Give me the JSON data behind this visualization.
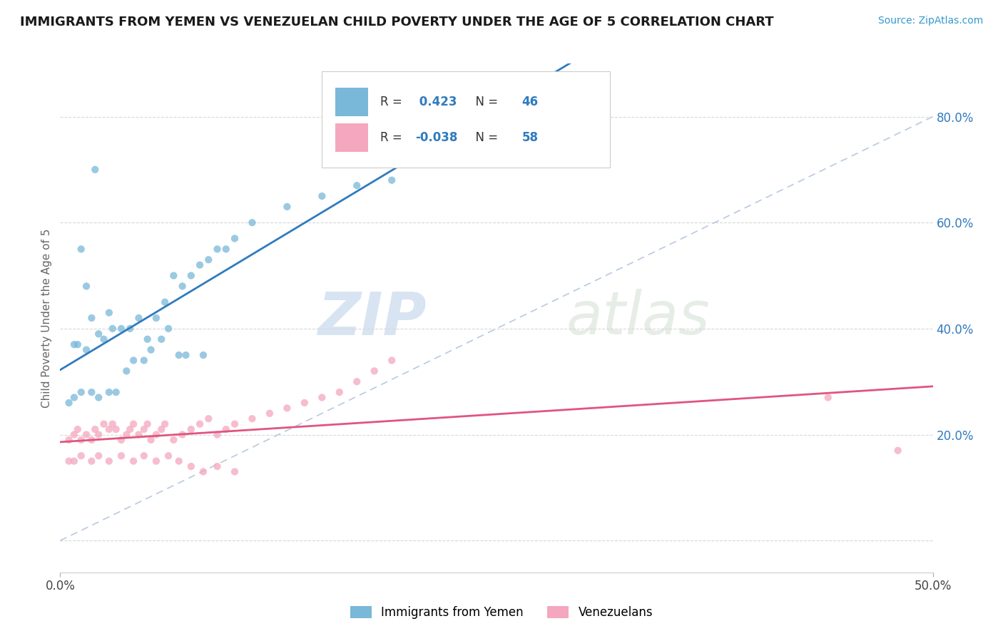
{
  "title": "IMMIGRANTS FROM YEMEN VS VENEZUELAN CHILD POVERTY UNDER THE AGE OF 5 CORRELATION CHART",
  "source": "Source: ZipAtlas.com",
  "ylabel": "Child Poverty Under the Age of 5",
  "xlim": [
    0.0,
    0.5
  ],
  "ylim": [
    -0.06,
    0.9
  ],
  "xticks": [
    0.0,
    0.5
  ],
  "xticklabels": [
    "0.0%",
    "50.0%"
  ],
  "yticks_right": [
    0.2,
    0.4,
    0.6,
    0.8
  ],
  "yticklabels_right": [
    "20.0%",
    "40.0%",
    "60.0%",
    "80.0%"
  ],
  "blue_color": "#7ab8d9",
  "pink_color": "#f4a7be",
  "blue_line_color": "#2f7bbf",
  "pink_line_color": "#e05580",
  "R_blue": 0.423,
  "N_blue": 46,
  "R_pink": -0.038,
  "N_pink": 58,
  "legend_label_blue": "Immigrants from Yemen",
  "legend_label_pink": "Venezuelans",
  "watermark_zip": "ZIP",
  "watermark_atlas": "atlas",
  "blue_scatter_x": [
    0.02,
    0.012,
    0.008,
    0.018,
    0.025,
    0.015,
    0.022,
    0.03,
    0.01,
    0.035,
    0.028,
    0.04,
    0.015,
    0.05,
    0.045,
    0.06,
    0.055,
    0.07,
    0.065,
    0.08,
    0.075,
    0.09,
    0.085,
    0.1,
    0.095,
    0.11,
    0.13,
    0.15,
    0.17,
    0.19,
    0.005,
    0.008,
    0.012,
    0.018,
    0.022,
    0.028,
    0.032,
    0.038,
    0.042,
    0.048,
    0.052,
    0.058,
    0.062,
    0.068,
    0.072,
    0.082
  ],
  "blue_scatter_y": [
    0.7,
    0.55,
    0.37,
    0.42,
    0.38,
    0.48,
    0.39,
    0.4,
    0.37,
    0.4,
    0.43,
    0.4,
    0.36,
    0.38,
    0.42,
    0.45,
    0.42,
    0.48,
    0.5,
    0.52,
    0.5,
    0.55,
    0.53,
    0.57,
    0.55,
    0.6,
    0.63,
    0.65,
    0.67,
    0.68,
    0.26,
    0.27,
    0.28,
    0.28,
    0.27,
    0.28,
    0.28,
    0.32,
    0.34,
    0.34,
    0.36,
    0.38,
    0.4,
    0.35,
    0.35,
    0.35
  ],
  "pink_scatter_x": [
    0.005,
    0.008,
    0.01,
    0.012,
    0.015,
    0.018,
    0.02,
    0.022,
    0.025,
    0.028,
    0.03,
    0.032,
    0.035,
    0.038,
    0.04,
    0.042,
    0.045,
    0.048,
    0.05,
    0.052,
    0.055,
    0.058,
    0.06,
    0.065,
    0.07,
    0.075,
    0.08,
    0.085,
    0.09,
    0.095,
    0.1,
    0.11,
    0.12,
    0.13,
    0.14,
    0.15,
    0.16,
    0.17,
    0.18,
    0.19,
    0.005,
    0.008,
    0.012,
    0.018,
    0.022,
    0.028,
    0.035,
    0.042,
    0.048,
    0.055,
    0.062,
    0.068,
    0.075,
    0.082,
    0.09,
    0.1,
    0.44,
    0.48
  ],
  "pink_scatter_y": [
    0.19,
    0.2,
    0.21,
    0.19,
    0.2,
    0.19,
    0.21,
    0.2,
    0.22,
    0.21,
    0.22,
    0.21,
    0.19,
    0.2,
    0.21,
    0.22,
    0.2,
    0.21,
    0.22,
    0.19,
    0.2,
    0.21,
    0.22,
    0.19,
    0.2,
    0.21,
    0.22,
    0.23,
    0.2,
    0.21,
    0.22,
    0.23,
    0.24,
    0.25,
    0.26,
    0.27,
    0.28,
    0.3,
    0.32,
    0.34,
    0.15,
    0.15,
    0.16,
    0.15,
    0.16,
    0.15,
    0.16,
    0.15,
    0.16,
    0.15,
    0.16,
    0.15,
    0.14,
    0.13,
    0.14,
    0.13,
    0.27,
    0.17
  ],
  "background_color": "#ffffff",
  "grid_color": "#d8d8d8",
  "diag_color": "#b0c4de"
}
